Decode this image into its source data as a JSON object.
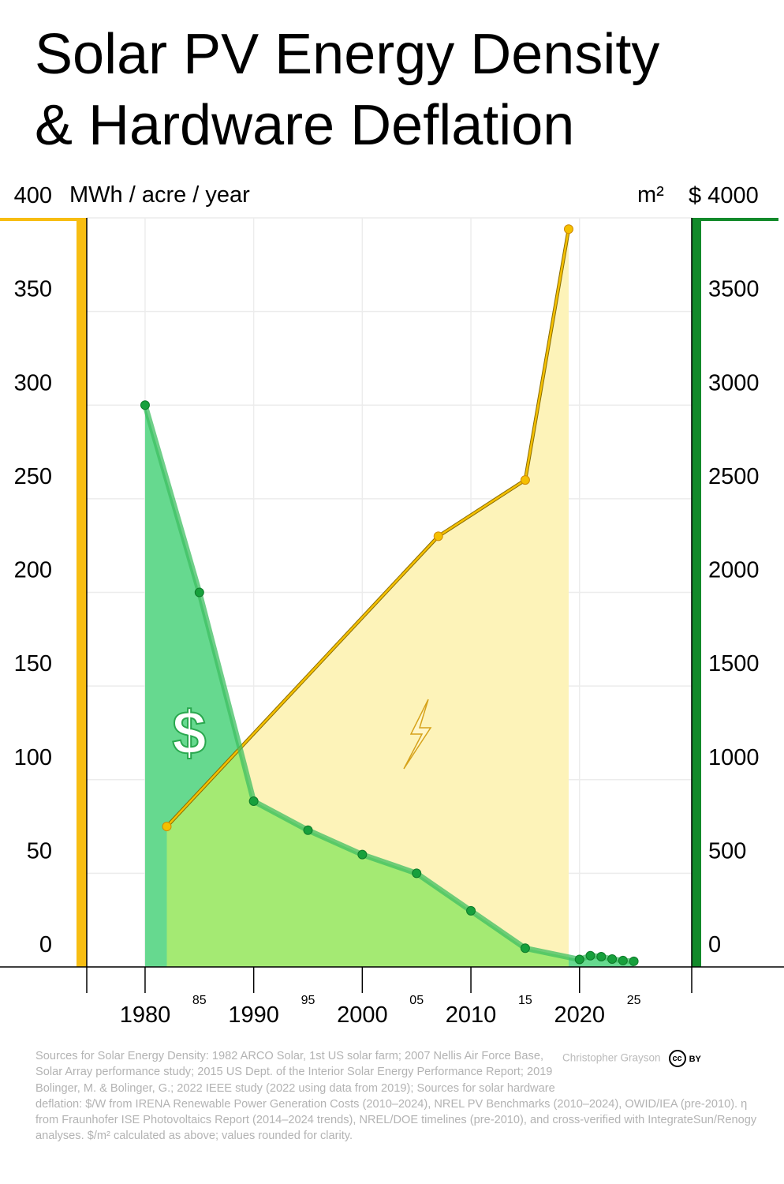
{
  "chart_data": {
    "type": "line",
    "title_lines": [
      "Solar PV Energy Density",
      "& Hardware Deflation"
    ],
    "ylabel": "MWh / acre / year",
    "y2label": "m²",
    "xlim": [
      1974.63,
      2030.33
    ],
    "xticks": [
      1980,
      1990,
      2000,
      2010,
      2020
    ],
    "xticks_minor": [
      {
        "value": 1985,
        "label": "85"
      },
      {
        "value": 1995,
        "label": "95"
      },
      {
        "value": 2005,
        "label": "05"
      },
      {
        "value": 2015,
        "label": "15"
      },
      {
        "value": 2025,
        "label": "25"
      }
    ],
    "ylim": [
      0,
      400
    ],
    "yticks": [
      0,
      50,
      100,
      150,
      200,
      250,
      300,
      350,
      400
    ],
    "y2lim": [
      0,
      4000
    ],
    "y2ticks": [
      0,
      500,
      1000,
      1500,
      2000,
      2500,
      3000,
      3500,
      {
        "value": 4000,
        "label": "$ 4000"
      }
    ],
    "grid": true,
    "series": [
      {
        "name": "Energy density",
        "color": "#f5c000",
        "fill": "#fdf3b9",
        "x": [
          1982,
          2007,
          2015,
          2019
        ],
        "values": [
          75,
          230,
          260,
          394
        ]
      },
      {
        "name": "Hardware cost",
        "color": "#17a03c",
        "fill": "#66d98f",
        "overlap_fill": "#a4ea73",
        "axis": "y2",
        "x": [
          1980,
          1985,
          1990,
          1995,
          2000,
          2005,
          2010,
          2015,
          2020,
          2021,
          2022,
          2023,
          2024,
          2025
        ],
        "values": [
          3000,
          2000,
          885,
          730,
          600,
          500,
          300,
          100,
          40,
          60,
          55,
          42,
          34,
          30
        ]
      }
    ],
    "sources": "Sources for Solar Energy Density: 1982 ARCO Solar, 1st US solar farm; 2007 Nellis Air Force Base, Solar Array performance study; 2015 US Dept. of the Interior Solar Energy Performance Report; 2019 Bolinger, M. & Bolinger, G.; 2022 IEEE study (2022 using data from 2019); Sources for solar hardware deflation: $/W from IRENA Renewable Power Generation Costs (2010–2024), NREL PV Benchmarks (2010–2024), OWID/IEA (pre-2010). η from Fraunhofer ISE Photovoltaics Report (2014–2024 trends), NREL/DOE timelines (pre-2010), and cross-verified with IntegrateSun/Renogy analyses. $/m² calculated as above; values rounded for clarity.",
    "author": "Christopher Grayson",
    "license": "BY"
  }
}
